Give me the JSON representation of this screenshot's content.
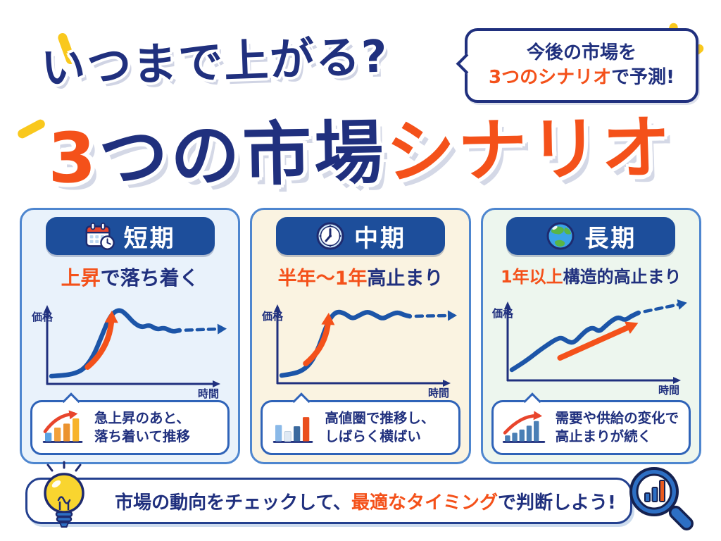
{
  "header": {
    "title_top": "いつまで上がる?",
    "title_main": {
      "part1": "3",
      "part2": "つの市場",
      "part3": "シナリオ"
    },
    "bubble": {
      "line1": "今後の市場を",
      "line2_accent": "3つのシナリオ",
      "line2_rest": "で予測!"
    }
  },
  "cards": [
    {
      "id": "short-term",
      "label": "短期",
      "icon": "calendar-clock-icon",
      "bg": "#e9f2fb",
      "subtitle_accent": "上昇",
      "subtitle_rest": "で落ち着く",
      "chart": {
        "type": "line",
        "ylabel": "価格",
        "xlabel": "時間",
        "trend": "sharp rise then settles slightly lower, flat with small waves, dashed arrow onward",
        "points": [
          [
            0,
            0.97
          ],
          [
            0.08,
            0.96
          ],
          [
            0.16,
            0.93
          ],
          [
            0.22,
            0.86
          ],
          [
            0.28,
            0.68
          ],
          [
            0.33,
            0.42
          ],
          [
            0.38,
            0.16
          ],
          [
            0.42,
            0.05
          ],
          [
            0.46,
            0.03
          ],
          [
            0.5,
            0.1
          ],
          [
            0.55,
            0.22
          ],
          [
            0.6,
            0.28
          ],
          [
            0.65,
            0.24
          ],
          [
            0.7,
            0.31
          ],
          [
            0.75,
            0.28
          ],
          [
            0.8,
            0.34
          ],
          [
            0.85,
            0.32
          ]
        ],
        "dash_dy": 2,
        "arrow": {
          "from": [
            0.24,
            0.84
          ],
          "to": [
            0.4,
            0.13
          ],
          "bow": 0.22
        }
      },
      "note": [
        "急上昇のあと、",
        "落ち着いて推移"
      ]
    },
    {
      "id": "mid-term",
      "label": "中期",
      "icon": "clock-icon",
      "bg": "#faf3e1",
      "subtitle_accent": "半年～1年",
      "subtitle_rest": "高止まり",
      "chart": {
        "type": "line",
        "ylabel": "価格",
        "xlabel": "時間",
        "trend": "rise then stays in high range, sideways waves, dashed arrow onward",
        "points": [
          [
            0,
            0.97
          ],
          [
            0.07,
            0.95
          ],
          [
            0.14,
            0.9
          ],
          [
            0.2,
            0.78
          ],
          [
            0.25,
            0.55
          ],
          [
            0.29,
            0.3
          ],
          [
            0.33,
            0.13
          ],
          [
            0.37,
            0.06
          ],
          [
            0.42,
            0.09
          ],
          [
            0.47,
            0.17
          ],
          [
            0.52,
            0.11
          ],
          [
            0.57,
            0.06
          ],
          [
            0.62,
            0.11
          ],
          [
            0.67,
            0.17
          ],
          [
            0.72,
            0.11
          ],
          [
            0.77,
            0.07
          ],
          [
            0.81,
            0.11
          ],
          [
            0.85,
            0.13
          ]
        ],
        "dash_dy": 1,
        "arrow": {
          "from": [
            0.16,
            0.8
          ],
          "to": [
            0.31,
            0.17
          ],
          "bow": 0.22
        }
      },
      "note": [
        "高値圏で推移し、",
        "しばらく横ばい"
      ]
    },
    {
      "id": "long-term",
      "label": "長期",
      "icon": "globe-icon",
      "bg": "#edf6ee",
      "subtitle_accent": "1年以上",
      "subtitle_rest": "構造的高止まり",
      "chart": {
        "type": "line",
        "ylabel": "価格",
        "xlabel": "時間",
        "trend": "long steady wavy climb with straight orange trend arrow, dashed arrow rising onward",
        "points": [
          [
            0,
            0.93
          ],
          [
            0.06,
            0.85
          ],
          [
            0.12,
            0.76
          ],
          [
            0.18,
            0.66
          ],
          [
            0.24,
            0.57
          ],
          [
            0.29,
            0.5
          ],
          [
            0.33,
            0.47
          ],
          [
            0.37,
            0.53
          ],
          [
            0.41,
            0.55
          ],
          [
            0.46,
            0.44
          ],
          [
            0.5,
            0.36
          ],
          [
            0.54,
            0.33
          ],
          [
            0.58,
            0.39
          ],
          [
            0.62,
            0.31
          ],
          [
            0.67,
            0.22
          ],
          [
            0.71,
            0.18
          ],
          [
            0.75,
            0.23
          ],
          [
            0.79,
            0.17
          ],
          [
            0.84,
            0.12
          ]
        ],
        "dash_dy": 12,
        "arrow": {
          "from": [
            0.32,
            0.76
          ],
          "to": [
            0.8,
            0.3
          ],
          "bow": 0
        }
      },
      "note": [
        "需要や供給の変化で",
        "高止まりが続く"
      ]
    }
  ],
  "footer": {
    "before": "市場の動向をチェックして、",
    "accent": "最適なタイミング",
    "after": "で判断しよう!"
  },
  "icons": {
    "card_icons": [
      "calendar-clock-icon",
      "clock-icon",
      "globe-icon"
    ],
    "note_icon": "mini-bar-chart-icon",
    "footer_left": "lightbulb-icon",
    "footer_right": "magnifier-chart-icon",
    "emphasis": "sparkle-icon"
  },
  "colors": {
    "navy": "#20307e",
    "orange": "#f4511a",
    "pill_blue": "#1d4e9b",
    "curve_blue": "#1c55a8",
    "card_border": "#4e86cf",
    "card1_bg": "#e9f2fb",
    "card2_bg": "#faf3e1",
    "card3_bg": "#edf6ee",
    "yellow": "#f9c81d",
    "red": "#e8452c"
  }
}
